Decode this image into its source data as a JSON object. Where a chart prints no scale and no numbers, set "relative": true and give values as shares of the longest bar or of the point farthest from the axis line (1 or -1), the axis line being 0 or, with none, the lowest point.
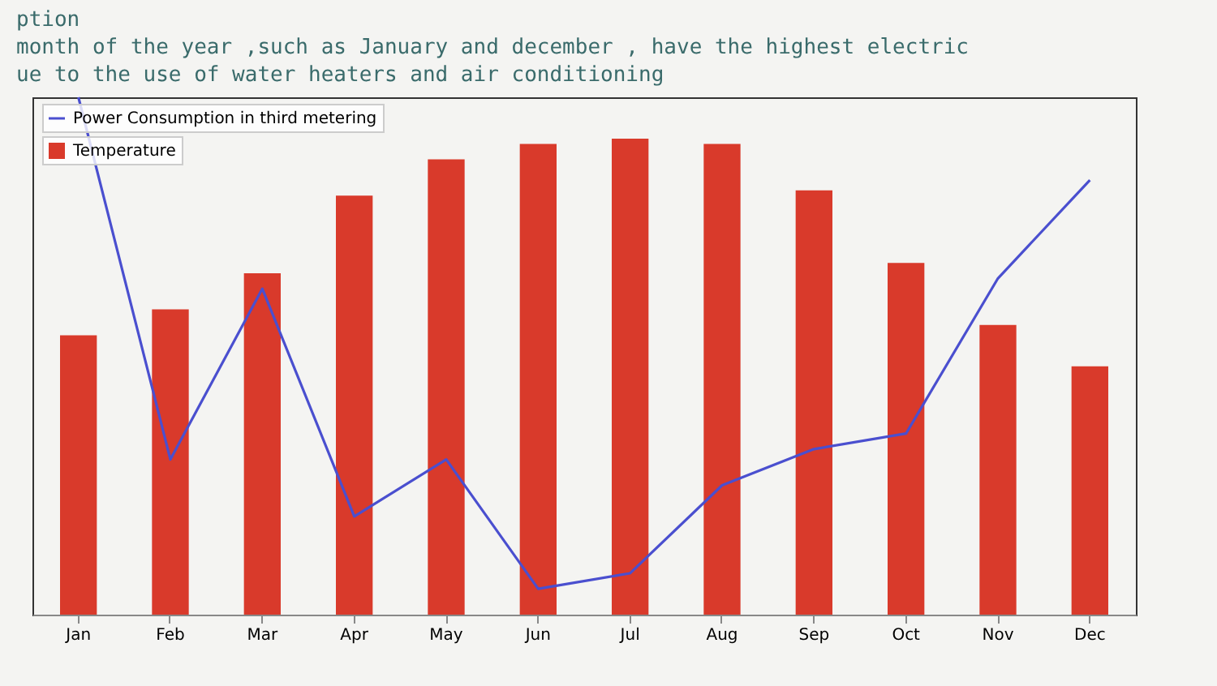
{
  "chart_data": {
    "type": "bar",
    "relative": true,
    "annotations": [
      "ption",
      "month of the year ,such as January and december , have the highest electric",
      "ue to the use of water heaters and air conditioning"
    ],
    "categories": [
      "Jan",
      "Feb",
      "Mar",
      "Apr",
      "May",
      "Jun",
      "Jul",
      "Aug",
      "Sep",
      "Oct",
      "Nov",
      "Dec"
    ],
    "series": [
      {
        "name": "Power Consumption in third metering",
        "type": "line",
        "color": "#4a4fcf",
        "values": [
          1,
          0.3,
          0.63,
          0.19,
          0.3,
          0.05,
          0.08,
          0.25,
          0.32,
          0.35,
          0.65,
          0.84
        ]
      },
      {
        "name": "Temperature",
        "color": "#d93a2b",
        "values": [
          0.54,
          0.59,
          0.66,
          0.81,
          0.88,
          0.91,
          0.92,
          0.91,
          0.82,
          0.68,
          0.56,
          0.48
        ]
      }
    ],
    "legend": "top left",
    "grid": false
  }
}
